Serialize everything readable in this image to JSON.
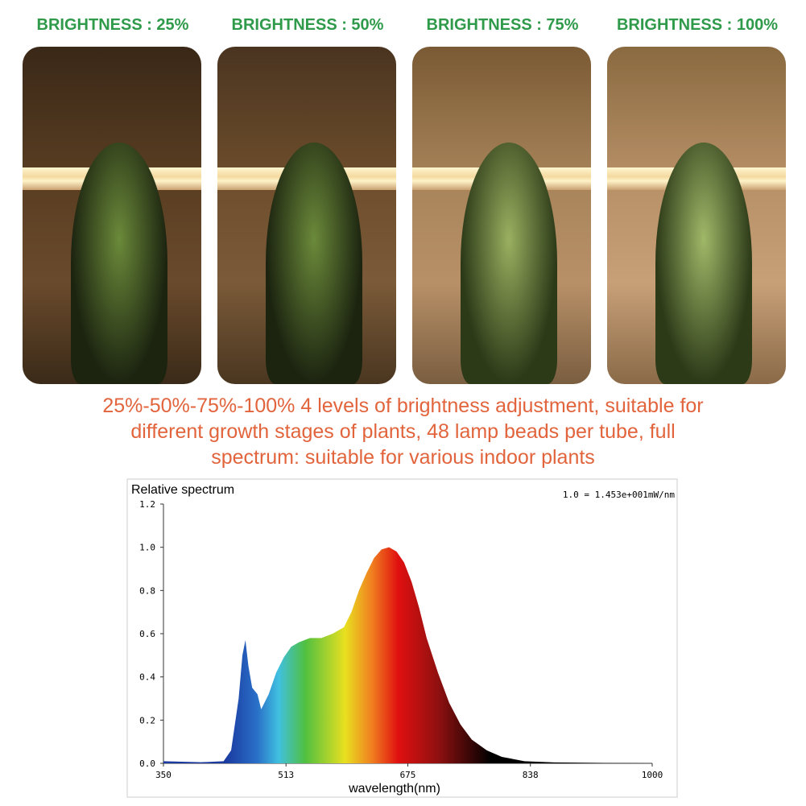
{
  "panels": [
    {
      "label": "BRIGHTNESS : 25%"
    },
    {
      "label": "BRIGHTNESS : 50%"
    },
    {
      "label": "BRIGHTNESS : 75%"
    },
    {
      "label": "BRIGHTNESS : 100%"
    }
  ],
  "caption_lines": [
    "25%-50%-75%-100% 4 levels of brightness adjustment, suitable for",
    "different growth stages of plants, 48 lamp beads per tube, full",
    "spectrum: suitable for various indoor plants"
  ],
  "chart_data": {
    "type": "area",
    "title": "Relative spectrum",
    "annotation": "1.0 = 1.453e+001mW/nm",
    "x_label": "wavelength(nm)",
    "x": [
      350,
      400,
      430,
      440,
      450,
      455,
      459,
      463,
      468,
      475,
      480,
      490,
      500,
      510,
      520,
      530,
      545,
      560,
      575,
      590,
      600,
      610,
      620,
      630,
      640,
      650,
      660,
      670,
      680,
      690,
      700,
      715,
      730,
      745,
      760,
      780,
      800,
      830,
      870,
      1000
    ],
    "values": [
      0.01,
      0.005,
      0.01,
      0.06,
      0.3,
      0.5,
      0.57,
      0.45,
      0.35,
      0.32,
      0.25,
      0.32,
      0.42,
      0.49,
      0.54,
      0.56,
      0.58,
      0.58,
      0.6,
      0.63,
      0.7,
      0.8,
      0.88,
      0.95,
      0.99,
      1.0,
      0.98,
      0.93,
      0.84,
      0.72,
      0.58,
      0.42,
      0.28,
      0.18,
      0.11,
      0.06,
      0.03,
      0.01,
      0.004,
      0
    ],
    "xlim": [
      350,
      1000
    ],
    "xticks": [
      350,
      513,
      675,
      838,
      1000
    ],
    "ylim": [
      0,
      1.2
    ],
    "yticks": [
      {
        "value": 0,
        "label": "0.0"
      },
      0.2,
      0.4,
      0.6,
      0.8,
      {
        "value": 1,
        "label": "1.0"
      },
      1.2
    ]
  }
}
